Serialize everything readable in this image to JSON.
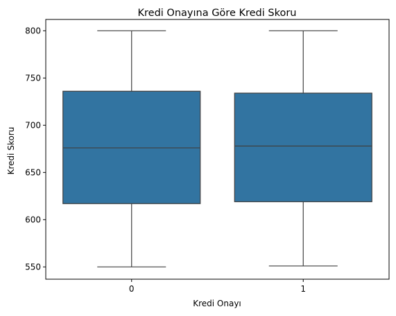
{
  "chart_data": {
    "type": "box",
    "title": "Kredi Onayına Göre Kredi Skoru",
    "xlabel": "Kredi Onayı",
    "ylabel": "Kredi Skoru",
    "categories": [
      "0",
      "1"
    ],
    "boxes": [
      {
        "category": "0",
        "whisker_low": 550,
        "q1": 617,
        "median": 676,
        "q3": 736,
        "whisker_high": 800
      },
      {
        "category": "1",
        "whisker_low": 551,
        "q1": 619,
        "median": 678,
        "q3": 734,
        "whisker_high": 800
      }
    ],
    "ylim": [
      537,
      812
    ],
    "yticks": [
      550,
      600,
      650,
      700,
      750,
      800
    ],
    "grid": false,
    "colors": {
      "box_fill": "#3274a1",
      "line": "#3f3f3f"
    }
  }
}
